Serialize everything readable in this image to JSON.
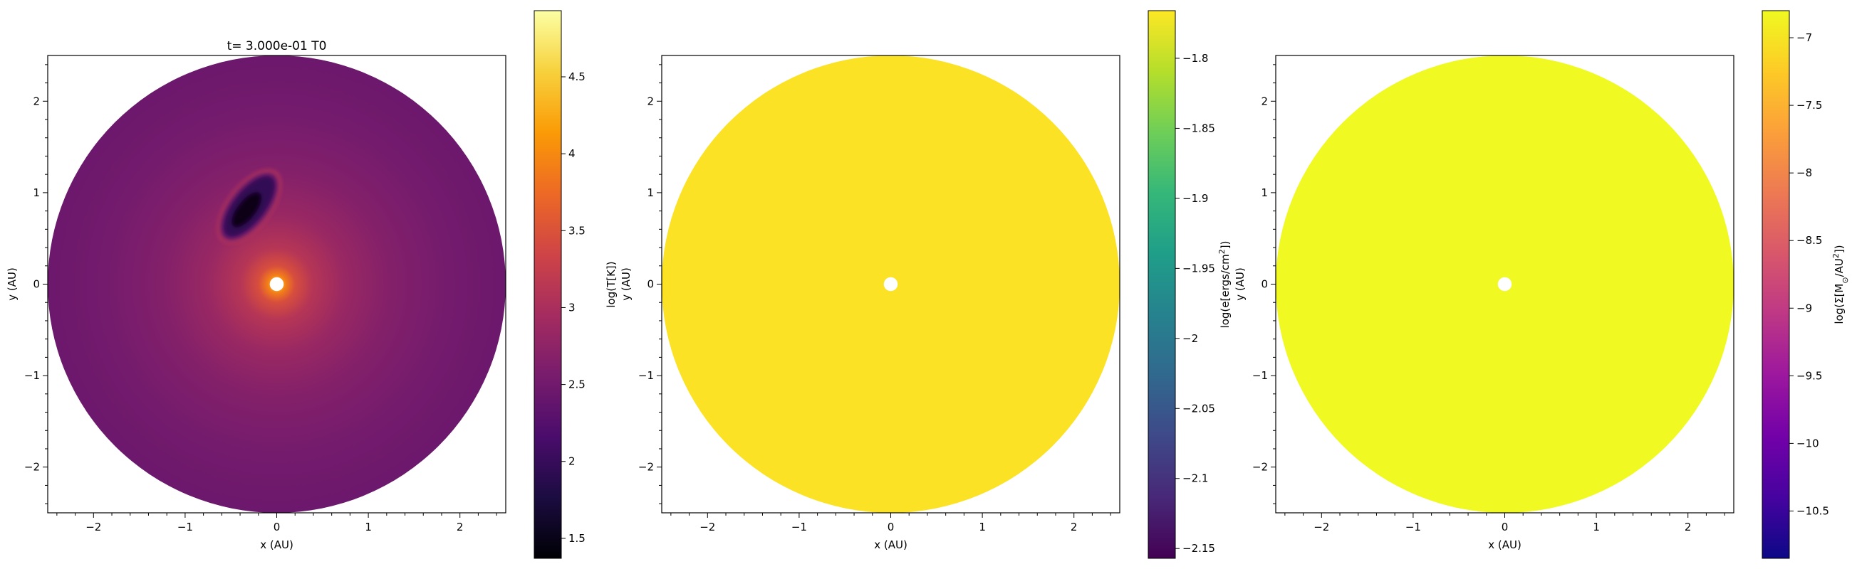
{
  "chart_data": [
    {
      "type": "heatmap",
      "title": "t= 3.000e-01 T0",
      "xlabel": "x (AU)",
      "ylabel": "y (AU)",
      "xlim": [
        -2.5,
        2.5
      ],
      "ylim": [
        -2.5,
        2.5
      ],
      "x_ticks": [
        -2,
        -1,
        0,
        1,
        2
      ],
      "y_ticks": [
        -2,
        -1,
        0,
        1,
        2
      ],
      "colormap": "inferno",
      "colorbar": {
        "label": "log(T[K])",
        "range": [
          1.37,
          4.93
        ],
        "ticks": [
          1.5,
          2.0,
          2.5,
          3.0,
          3.5,
          4.0,
          4.5
        ]
      },
      "field": {
        "disk_radius": 2.5,
        "center_value": 4.2,
        "edge_value": 2.45,
        "hole_radius": 0.04,
        "cold_blob": {
          "x": -0.3,
          "y": 0.85,
          "value": 1.5
        }
      }
    },
    {
      "type": "heatmap",
      "title": "",
      "xlabel": "x (AU)",
      "ylabel": "y (AU)",
      "xlim": [
        -2.5,
        2.5
      ],
      "ylim": [
        -2.5,
        2.5
      ],
      "x_ticks": [
        -2,
        -1,
        0,
        1,
        2
      ],
      "y_ticks": [
        -2,
        -1,
        0,
        1,
        2
      ],
      "colormap": "viridis",
      "colorbar": {
        "label": "log(e[ergs/cm^2])",
        "range": [
          -2.157,
          -1.766
        ],
        "ticks": [
          -1.8,
          -1.85,
          -1.9,
          -1.95,
          -2.0,
          -2.05,
          -2.1,
          -2.15
        ]
      },
      "field": {
        "disk_radius": 2.5,
        "value": -1.77,
        "hole_radius": 0.04,
        "fill_color": "#fbe224"
      }
    },
    {
      "type": "heatmap",
      "title": "",
      "xlabel": "x (AU)",
      "ylabel": "y (AU)",
      "xlim": [
        -2.5,
        2.5
      ],
      "ylim": [
        -2.5,
        2.5
      ],
      "x_ticks": [
        -2,
        -1,
        0,
        1,
        2
      ],
      "y_ticks": [
        -2,
        -1,
        0,
        1,
        2
      ],
      "colormap": "plasma",
      "colorbar": {
        "label": "log(Σ[M_⊙/AU^2])",
        "range": [
          -10.85,
          -6.8
        ],
        "ticks": [
          -7.0,
          -7.5,
          -8.0,
          -8.5,
          -9.0,
          -9.5,
          -10.0,
          -10.5
        ]
      },
      "field": {
        "disk_radius": 2.5,
        "value": -6.82,
        "hole_radius": 0.04,
        "fill_color": "#f0f921"
      }
    }
  ]
}
